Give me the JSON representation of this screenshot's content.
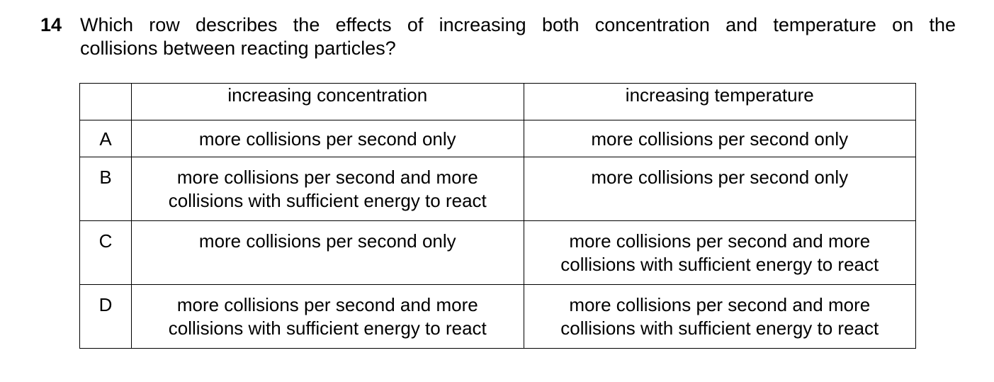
{
  "question": {
    "number": "14",
    "line1": "Which row describes the effects of increasing both concentration and temperature on the",
    "line2": "collisions between reacting particles?"
  },
  "table": {
    "headers": {
      "letter": "",
      "concentration": "increasing concentration",
      "temperature": "increasing temperature"
    },
    "rows": [
      {
        "letter": "A",
        "concentration": [
          "more collisions per second only"
        ],
        "temperature": [
          "more collisions per second only"
        ]
      },
      {
        "letter": "B",
        "concentration": [
          "more collisions per second and more",
          "collisions with sufficient energy to react"
        ],
        "temperature": [
          "more collisions per second only"
        ]
      },
      {
        "letter": "C",
        "concentration": [
          "more collisions per second only"
        ],
        "temperature": [
          "more collisions per second and more",
          "collisions with sufficient energy to react"
        ]
      },
      {
        "letter": "D",
        "concentration": [
          "more collisions per second and more",
          "collisions with sufficient energy to react"
        ],
        "temperature": [
          "more collisions per second and more",
          "collisions with sufficient energy to react"
        ]
      }
    ]
  }
}
